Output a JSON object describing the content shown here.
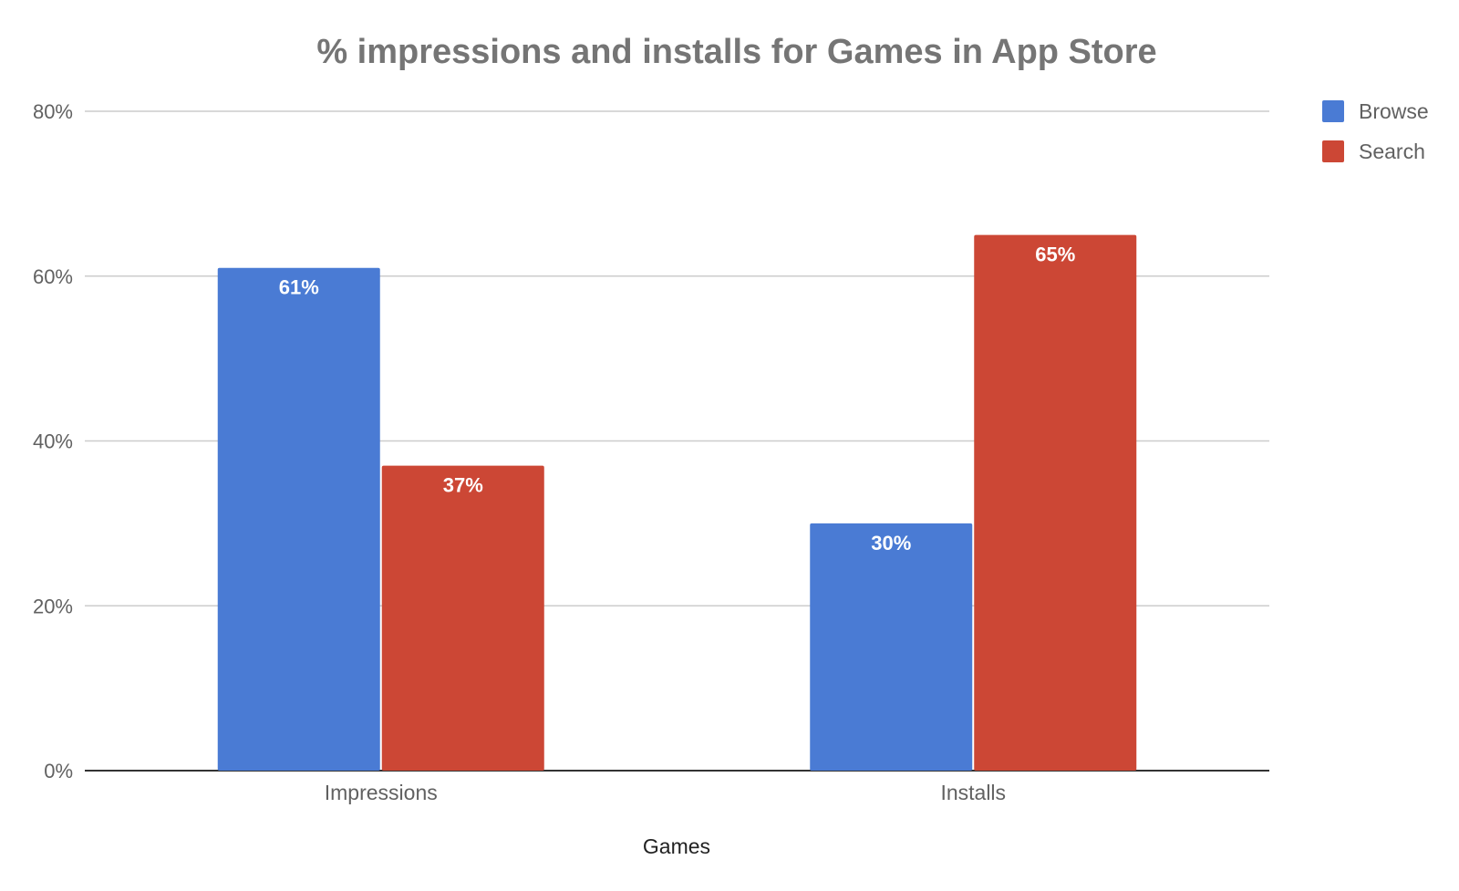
{
  "chart_data": {
    "type": "bar",
    "title": "% impressions and installs for Games in App Store",
    "xlabel": "Games",
    "ylabel": "",
    "categories": [
      "Impressions",
      "Installs"
    ],
    "series": [
      {
        "name": "Browse",
        "values": [
          61,
          30
        ],
        "labels": [
          "61%",
          "30%"
        ],
        "color": "#4a7bd4"
      },
      {
        "name": "Search",
        "values": [
          37,
          65
        ],
        "labels": [
          "37%",
          "65%"
        ],
        "color": "#cc4735"
      }
    ],
    "ylim": [
      0,
      80
    ],
    "yticks": [
      0,
      20,
      40,
      60,
      80
    ],
    "ytick_labels": [
      "0%",
      "20%",
      "40%",
      "60%",
      "80%"
    ],
    "grid": true,
    "legend_position": "top-right"
  }
}
